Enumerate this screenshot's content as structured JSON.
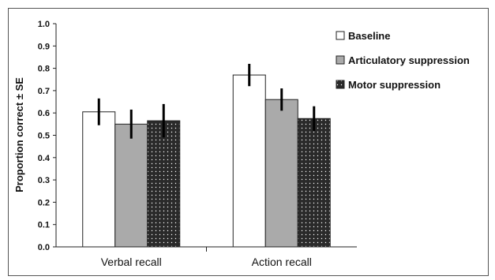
{
  "chart_data": {
    "type": "bar",
    "categories": [
      "Verbal recall",
      "Action recall"
    ],
    "series": [
      {
        "name": "Baseline",
        "values": [
          0.605,
          0.77
        ],
        "errors": [
          0.06,
          0.05
        ],
        "color": "#ffffff",
        "pattern": "none"
      },
      {
        "name": "Articulatory suppression",
        "values": [
          0.55,
          0.66
        ],
        "errors": [
          0.065,
          0.05
        ],
        "color": "#aaaaaa",
        "pattern": "none"
      },
      {
        "name": "Motor suppression",
        "values": [
          0.565,
          0.575
        ],
        "errors": [
          0.075,
          0.055
        ],
        "color": "#2a2a2a",
        "pattern": "dots"
      }
    ],
    "ylabel": "Proportion correct ± SE",
    "xlabel": "",
    "ylim": [
      0.0,
      1.0
    ],
    "yticks": [
      "0.0",
      "0.1",
      "0.2",
      "0.3",
      "0.4",
      "0.5",
      "0.6",
      "0.7",
      "0.8",
      "0.9",
      "1.0"
    ],
    "grid": false,
    "legend": "top-right",
    "error_bars": true
  }
}
